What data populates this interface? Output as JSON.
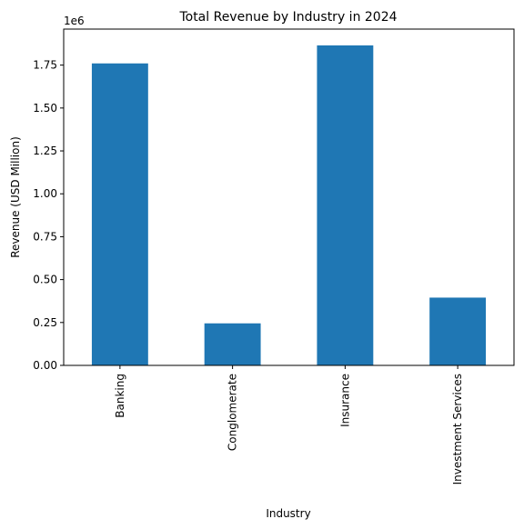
{
  "chart_data": {
    "type": "bar",
    "title": "Total Revenue by Industry in 2024",
    "xlabel": "Industry",
    "ylabel": "Revenue (USD Million)",
    "y_offset_label": "1e6",
    "categories": [
      "Banking",
      "Conglomerate",
      "Insurance",
      "Investment Services"
    ],
    "values": [
      1760000,
      245000,
      1865000,
      395000
    ],
    "ylim": [
      0,
      1960000
    ],
    "yticks": [
      0,
      250000,
      500000,
      750000,
      1000000,
      1250000,
      1500000,
      1750000
    ],
    "ytick_labels": [
      "0.00",
      "0.25",
      "0.50",
      "0.75",
      "1.00",
      "1.25",
      "1.50",
      "1.75"
    ],
    "bar_color": "#1f77b4",
    "grid": false,
    "legend": "none"
  }
}
